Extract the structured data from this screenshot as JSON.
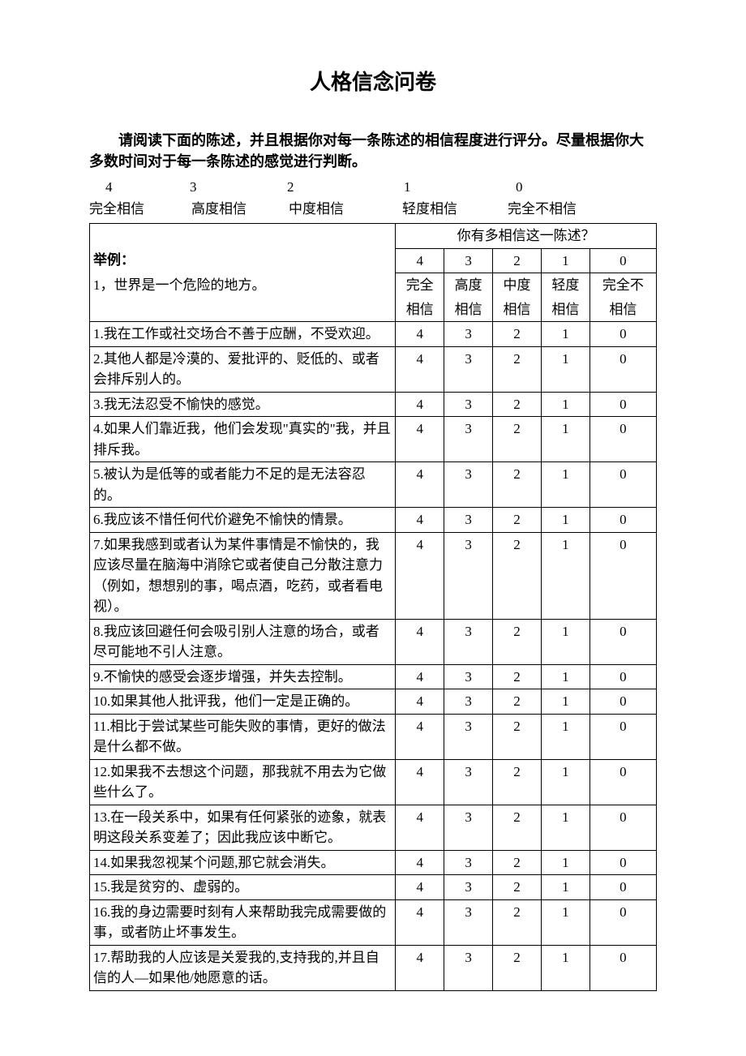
{
  "title": "人格信念问卷",
  "instructions": "请阅读下面的陈述，并且根据你对每一条陈述的相信程度进行评分。尽量根据你大多数时间对于每一条陈述的感觉进行判断。",
  "scale": {
    "numbers": [
      "4",
      "3",
      "2",
      "1",
      "0"
    ],
    "labels": [
      "完全相信",
      "高度相信",
      "中度相信",
      "轻度相信",
      "完全不相信"
    ]
  },
  "table": {
    "header_question": "你有多相信这一陈述？",
    "example_label": "举例：",
    "example_text": "1，世界是一个危险的地方。",
    "col_nums": [
      "4",
      "3",
      "2",
      "1",
      "0"
    ],
    "col_labels_l1": [
      "完全",
      "高度",
      "中度",
      "轻度",
      "完全不"
    ],
    "col_labels_l2": [
      "相信",
      "相信",
      "相信",
      "相信",
      "相信"
    ],
    "rows": [
      "1.我在工作或社交场合不善于应酬，不受欢迎。",
      "2.其他人都是冷漠的、爱批评的、贬低的、或者会排斥别人的。",
      "3.我无法忍受不愉快的感觉。",
      "4.如果人们靠近我，他们会发现\"真实的\"我，并且排斥我。",
      "5.被认为是低等的或者能力不足的是无法容忍的。",
      "6.我应该不惜任何代价避免不愉快的情景。",
      "7.如果我感到或者认为某件事情是不愉快的，我应该尽量在脑海中消除它或者使自己分散注意力（例如，想想别的事，喝点酒，吃药，或者看电视）。",
      "8.我应该回避任何会吸引别人注意的场合，或者尽可能地不引人注意。",
      "9.不愉快的感受会逐步增强，并失去控制。",
      "10.如果其他人批评我，他们一定是正确的。",
      "11.相比于尝试某些可能失败的事情，更好的做法是什么都不做。",
      "12.如果我不去想这个问题，那我就不用去为它做些什么了。",
      "13.在一段关系中，如果有任何紧张的迹象，就表明这段关系变差了；因此我应该中断它。",
      "14.如果我忽视某个问题,那它就会消失。",
      "15.我是贫穷的、虚弱的。",
      "16.我的身边需要时刻有人来帮助我完成需要做的事，或者防止坏事发生。",
      "17.帮助我的人应该是关爱我的,支持我的,并且自信的人—如果他/她愿意的话。"
    ],
    "rating_values": [
      "4",
      "3",
      "2",
      "1",
      "0"
    ]
  }
}
